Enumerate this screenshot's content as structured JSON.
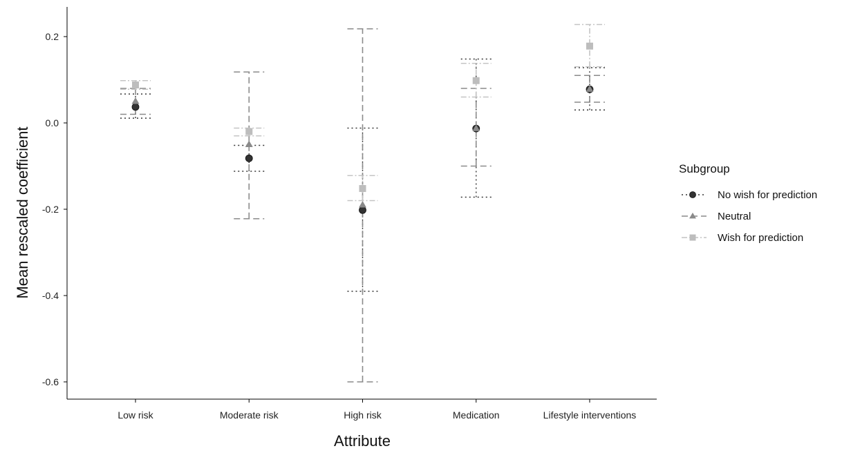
{
  "chart_data": {
    "type": "scatter",
    "xlabel": "Attribute",
    "ylabel": "Mean rescaled coefficient",
    "categories": [
      "Low risk",
      "Moderate risk",
      "High risk",
      "Medication",
      "Lifestyle interventions"
    ],
    "ylim": [
      -0.64,
      0.27
    ],
    "yticks": [
      "0.2",
      "0.0",
      "-0.2",
      "-0.4",
      "-0.6"
    ],
    "grid": false,
    "legend": {
      "title": "Subgroup",
      "placement": "right"
    },
    "series": [
      {
        "name": "No wish for prediction",
        "color": "#333333",
        "marker": "circle",
        "values": [
          0.037,
          -0.082,
          -0.202,
          -0.013,
          0.078
        ],
        "lower": [
          0.011,
          -0.112,
          -0.39,
          -0.172,
          0.03
        ],
        "upper": [
          0.067,
          -0.052,
          -0.012,
          0.148,
          0.128
        ]
      },
      {
        "name": "Neutral",
        "color": "#8a8a8a",
        "marker": "triangle",
        "values": [
          0.05,
          -0.05,
          -0.19,
          -0.013,
          0.078
        ],
        "lower": [
          0.02,
          -0.222,
          -0.6,
          -0.1,
          0.048
        ],
        "upper": [
          0.08,
          0.118,
          0.218,
          0.08,
          0.11
        ]
      },
      {
        "name": "Wish for prediction",
        "color": "#bdbdbd",
        "marker": "square",
        "values": [
          0.088,
          -0.02,
          -0.152,
          0.098,
          0.178
        ],
        "lower": [
          0.078,
          -0.03,
          -0.18,
          0.06,
          0.13
        ],
        "upper": [
          0.098,
          -0.012,
          -0.122,
          0.138,
          0.228
        ]
      }
    ]
  }
}
